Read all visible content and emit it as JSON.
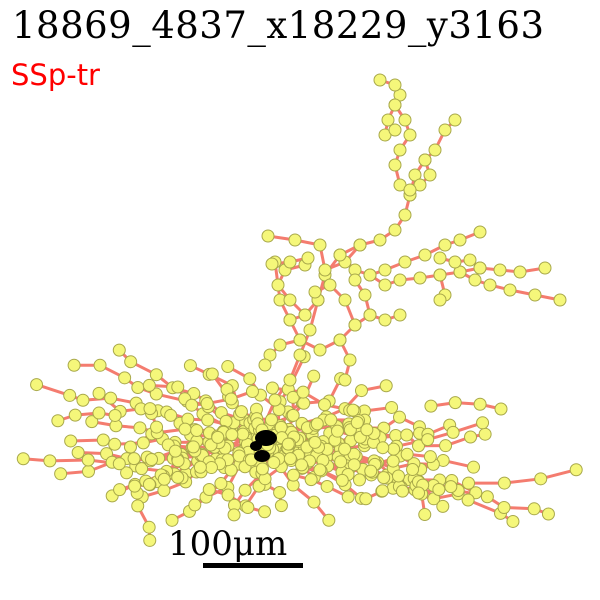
{
  "title": "18869_4837_x18229_y3163",
  "region": "SSp-tr",
  "scale_label": "100μm",
  "colors": {
    "title": "#000000",
    "region": "#ff0000",
    "edge": "#f47c6f",
    "node_fill": "#f5f77a",
    "node_stroke": "#a8a84a",
    "soma": "#000000",
    "scale_bar": "#000000"
  }
}
